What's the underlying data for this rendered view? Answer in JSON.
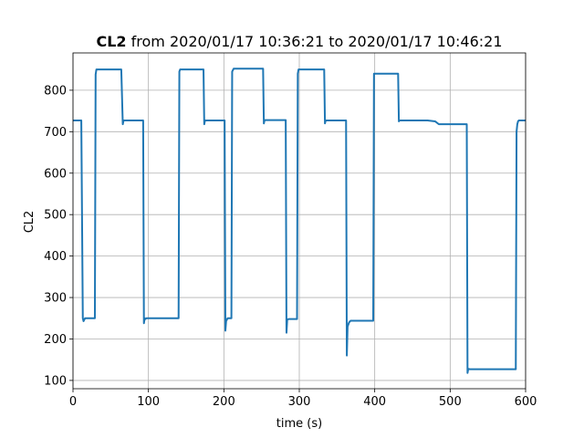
{
  "chart_data": {
    "type": "line",
    "title_bold": "CL2",
    "title_rest": " from 2020/01/17 10:36:21 to 2020/01/17 10:46:21",
    "xlabel": "time (s)",
    "ylabel": "CL2",
    "xlim": [
      0,
      600
    ],
    "ylim": [
      80,
      890
    ],
    "xticks": [
      0,
      100,
      200,
      300,
      400,
      500,
      600
    ],
    "yticks": [
      100,
      200,
      300,
      400,
      500,
      600,
      700,
      800
    ],
    "grid": true,
    "line_color": "#1f77b4",
    "series": [
      {
        "x": [
          0,
          11,
          13,
          14,
          16,
          29,
          30,
          31,
          33,
          64,
          66,
          67,
          69,
          93,
          94,
          95,
          96,
          97,
          140,
          141,
          142,
          144,
          173,
          174,
          175,
          177,
          201,
          202,
          203,
          205,
          210,
          211,
          213,
          215,
          252,
          253,
          254,
          256,
          282,
          283,
          284,
          286,
          292,
          297,
          298,
          299,
          301,
          333,
          334,
          335,
          337,
          362,
          363,
          364,
          366,
          368,
          370,
          372,
          398,
          399,
          401,
          431,
          432,
          433,
          470,
          480,
          485,
          490,
          522,
          523,
          524,
          526,
          527,
          587,
          588,
          589,
          590,
          591,
          600
        ],
        "y": [
          727,
          727,
          250,
          243,
          250,
          250,
          838,
          850,
          850,
          850,
          718,
          727,
          727,
          727,
          238,
          250,
          248,
          250,
          250,
          845,
          850,
          850,
          850,
          718,
          727,
          727,
          727,
          220,
          243,
          250,
          250,
          845,
          852,
          852,
          852,
          720,
          728,
          728,
          728,
          215,
          247,
          248,
          248,
          248,
          840,
          850,
          850,
          850,
          720,
          727,
          727,
          727,
          160,
          230,
          240,
          244,
          244,
          244,
          244,
          840,
          840,
          840,
          725,
          727,
          727,
          725,
          718,
          718,
          718,
          118,
          128,
          127,
          127,
          127,
          700,
          718,
          725,
          727,
          727
        ]
      }
    ]
  }
}
